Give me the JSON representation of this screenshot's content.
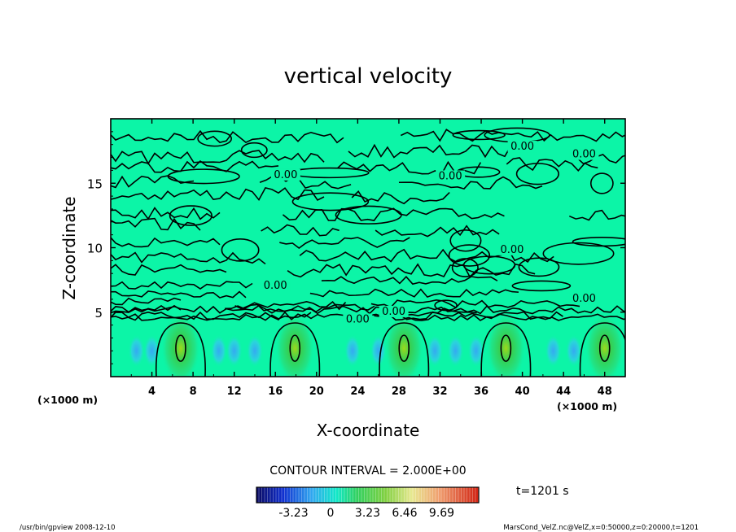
{
  "chart_data": {
    "type": "heatmap",
    "title": "vertical velocity",
    "xlabel": "X-coordinate",
    "ylabel": "Z-coordinate",
    "x_unit": "(×1000 m)",
    "z_unit": "(×1000 m)",
    "xlim": [
      0,
      50
    ],
    "ylim": [
      0,
      20
    ],
    "x_ticks": [
      4,
      8,
      12,
      16,
      20,
      24,
      28,
      32,
      36,
      40,
      44,
      48
    ],
    "y_ticks": [
      5,
      10,
      15
    ],
    "contour_interval_text": "CONTOUR INTERVAL = 2.000E+00",
    "contour_labels": [
      "0.00",
      "0.00",
      "0.00",
      "0.00",
      "0.00",
      "0.00",
      "0.00",
      "0.00",
      "0.00"
    ],
    "updraft_centers_x": [
      6.8,
      17.9,
      28.5,
      38.4,
      48.0
    ],
    "time_label": "t=1201 s",
    "colorbar": {
      "ticks": [
        "-3.23",
        "0",
        "3.23",
        "6.46",
        "9.69"
      ],
      "min": -6.46,
      "max": 12.92
    }
  },
  "footer": {
    "left": "/usr/bin/gpview   2008-12-10",
    "right": "MarsCond_VelZ.nc@VelZ,x=0:50000,z=0:20000,t=1201"
  },
  "colors": {
    "background_field": "#0cf5a7",
    "updraft_core": "#2ad35a",
    "downdraft": "#3fb2f0",
    "contour": "#000000"
  }
}
